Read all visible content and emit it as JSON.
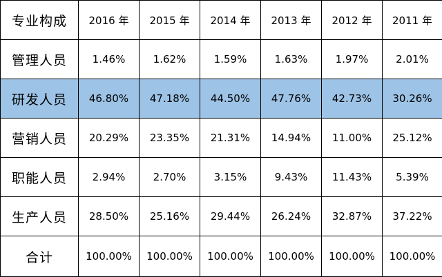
{
  "table": {
    "header": {
      "label": "专业构成",
      "years": [
        "2016 年",
        "2015 年",
        "2014 年",
        "2013 年",
        "2012 年",
        "2011 年"
      ]
    },
    "rows": [
      {
        "label": "管理人员",
        "values": [
          "1.46%",
          "1.62%",
          "1.59%",
          "1.63%",
          "1.97%",
          "2.01%"
        ]
      },
      {
        "label": "研发人员",
        "values": [
          "46.80%",
          "47.18%",
          "44.50%",
          "47.76%",
          "42.73%",
          "30.26%"
        ],
        "highlighted": true
      },
      {
        "label": "营销人员",
        "values": [
          "20.29%",
          "23.35%",
          "21.31%",
          "14.94%",
          "11.00%",
          "25.12%"
        ]
      },
      {
        "label": "职能人员",
        "values": [
          "2.94%",
          "2.70%",
          "3.15%",
          "9.43%",
          "11.43%",
          "5.39%"
        ]
      },
      {
        "label": "生产人员",
        "values": [
          "28.50%",
          "25.16%",
          "29.44%",
          "26.24%",
          "32.87%",
          "37.22%"
        ]
      },
      {
        "label": "合计",
        "values": [
          "100.00%",
          "100.00%",
          "100.00%",
          "100.00%",
          "100.00%",
          "100.00%"
        ]
      }
    ]
  },
  "colors": {
    "highlight_row": "#9dc3e6",
    "border": "#000000",
    "text": "#000000",
    "background": "#ffffff"
  }
}
